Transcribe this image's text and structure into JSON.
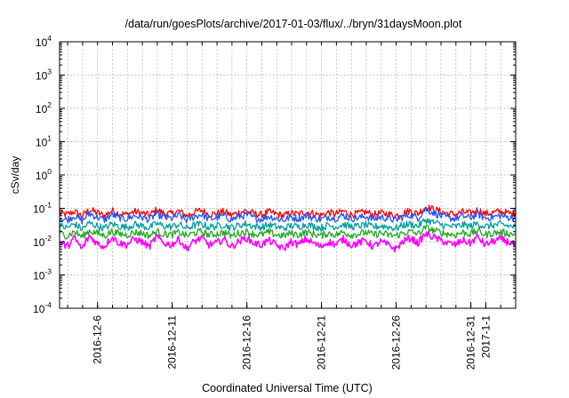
{
  "chart_data": {
    "type": "line",
    "title": "/data/run/goesPlots/archive/2017-01-03/flux/../bryn/31daysMoon.plot",
    "xlabel": "Coordinated Universal Time (UTC)",
    "ylabel": "cSv/day",
    "yscale": "log",
    "ylim": [
      0.0001,
      10000
    ],
    "xlim": [
      "2016-12-03T11:00",
      "2017-01-03T00:00"
    ],
    "grid": true,
    "legend": "none",
    "y_ticks": [
      {
        "base": "10",
        "exp": "-4",
        "value": 0.0001
      },
      {
        "base": "10",
        "exp": "-3",
        "value": 0.001
      },
      {
        "base": "10",
        "exp": "-2",
        "value": 0.01
      },
      {
        "base": "10",
        "exp": "-1",
        "value": 0.1
      },
      {
        "base": "10",
        "exp": "0",
        "value": 1
      },
      {
        "base": "10",
        "exp": "1",
        "value": 10
      },
      {
        "base": "10",
        "exp": "2",
        "value": 100
      },
      {
        "base": "10",
        "exp": "3",
        "value": 1000
      },
      {
        "base": "10",
        "exp": "4",
        "value": 10000
      }
    ],
    "x_ticks": [
      {
        "label": "2016-12-6",
        "date": "2016-12-06"
      },
      {
        "label": "2016-12-11",
        "date": "2016-12-11"
      },
      {
        "label": "2016-12-16",
        "date": "2016-12-16"
      },
      {
        "label": "2016-12-21",
        "date": "2016-12-21"
      },
      {
        "label": "2016-12-26",
        "date": "2016-12-26"
      },
      {
        "label": "2016-12-31",
        "date": "2016-12-31"
      },
      {
        "label": "2017-1-1",
        "date": "2017-01-01"
      }
    ],
    "series": [
      {
        "color": "#ff0000",
        "x_start": "2016-12-03T11:00",
        "x_step_days": 0.5,
        "values": [
          0.07,
          0.065,
          0.08,
          0.06,
          0.09,
          0.075,
          0.06,
          0.085,
          0.07,
          0.065,
          0.08,
          0.072,
          0.062,
          0.09,
          0.07,
          0.068,
          0.082,
          0.06,
          0.075,
          0.088,
          0.066,
          0.07,
          0.08,
          0.062,
          0.075,
          0.085,
          0.07,
          0.064,
          0.078,
          0.068,
          0.06,
          0.072,
          0.066,
          0.08,
          0.07,
          0.062,
          0.075,
          0.068,
          0.082,
          0.066,
          0.07,
          0.078,
          0.064,
          0.072,
          0.068,
          0.06,
          0.074,
          0.084,
          0.07,
          0.11,
          0.095,
          0.08,
          0.07,
          0.066,
          0.078,
          0.07,
          0.09,
          0.068,
          0.074,
          0.08,
          0.072,
          0.068
        ]
      },
      {
        "color": "#2255ff",
        "x_start": "2016-12-03T11:00",
        "x_step_days": 0.5,
        "values": [
          0.05,
          0.045,
          0.06,
          0.042,
          0.07,
          0.055,
          0.045,
          0.065,
          0.052,
          0.048,
          0.06,
          0.054,
          0.046,
          0.068,
          0.052,
          0.05,
          0.062,
          0.044,
          0.056,
          0.066,
          0.048,
          0.052,
          0.06,
          0.046,
          0.056,
          0.064,
          0.052,
          0.047,
          0.058,
          0.05,
          0.044,
          0.054,
          0.049,
          0.06,
          0.052,
          0.046,
          0.056,
          0.05,
          0.062,
          0.049,
          0.052,
          0.058,
          0.047,
          0.054,
          0.05,
          0.044,
          0.055,
          0.063,
          0.052,
          0.095,
          0.075,
          0.06,
          0.052,
          0.049,
          0.058,
          0.052,
          0.068,
          0.05,
          0.055,
          0.06,
          0.054,
          0.05
        ]
      },
      {
        "color": "#00a0a0",
        "x_start": "2016-12-03T11:00",
        "x_step_days": 0.5,
        "values": [
          0.03,
          0.026,
          0.034,
          0.024,
          0.036,
          0.03,
          0.025,
          0.034,
          0.029,
          0.027,
          0.033,
          0.03,
          0.026,
          0.035,
          0.029,
          0.028,
          0.033,
          0.025,
          0.031,
          0.034,
          0.027,
          0.029,
          0.033,
          0.026,
          0.031,
          0.034,
          0.029,
          0.027,
          0.032,
          0.028,
          0.025,
          0.03,
          0.028,
          0.033,
          0.029,
          0.026,
          0.031,
          0.028,
          0.033,
          0.028,
          0.029,
          0.032,
          0.027,
          0.03,
          0.028,
          0.025,
          0.031,
          0.034,
          0.029,
          0.045,
          0.038,
          0.033,
          0.029,
          0.028,
          0.032,
          0.029,
          0.035,
          0.028,
          0.031,
          0.033,
          0.03,
          0.028
        ]
      },
      {
        "color": "#22aa22",
        "x_start": "2016-12-03T11:00",
        "x_step_days": 0.5,
        "values": [
          0.018,
          0.015,
          0.02,
          0.014,
          0.021,
          0.018,
          0.015,
          0.02,
          0.017,
          0.016,
          0.019,
          0.018,
          0.015,
          0.02,
          0.017,
          0.016,
          0.019,
          0.015,
          0.018,
          0.02,
          0.016,
          0.017,
          0.019,
          0.015,
          0.018,
          0.02,
          0.017,
          0.016,
          0.019,
          0.016,
          0.015,
          0.018,
          0.016,
          0.019,
          0.017,
          0.015,
          0.018,
          0.016,
          0.019,
          0.016,
          0.017,
          0.019,
          0.016,
          0.018,
          0.016,
          0.015,
          0.018,
          0.02,
          0.017,
          0.026,
          0.022,
          0.019,
          0.017,
          0.016,
          0.019,
          0.017,
          0.021,
          0.016,
          0.018,
          0.019,
          0.018,
          0.016
        ]
      },
      {
        "color": "#ff00ff",
        "x_start": "2016-12-03T11:00",
        "x_step_days": 0.5,
        "values": [
          0.01,
          0.007,
          0.013,
          0.006,
          0.015,
          0.009,
          0.007,
          0.014,
          0.009,
          0.008,
          0.012,
          0.01,
          0.007,
          0.014,
          0.009,
          0.008,
          0.012,
          0.006,
          0.01,
          0.013,
          0.008,
          0.009,
          0.012,
          0.007,
          0.01,
          0.013,
          0.009,
          0.008,
          0.011,
          0.008,
          0.006,
          0.01,
          0.008,
          0.012,
          0.009,
          0.007,
          0.01,
          0.008,
          0.012,
          0.008,
          0.009,
          0.011,
          0.007,
          0.01,
          0.008,
          0.006,
          0.01,
          0.013,
          0.009,
          0.017,
          0.014,
          0.011,
          0.009,
          0.008,
          0.011,
          0.009,
          0.014,
          0.008,
          0.01,
          0.012,
          0.01,
          0.008
        ]
      }
    ]
  }
}
